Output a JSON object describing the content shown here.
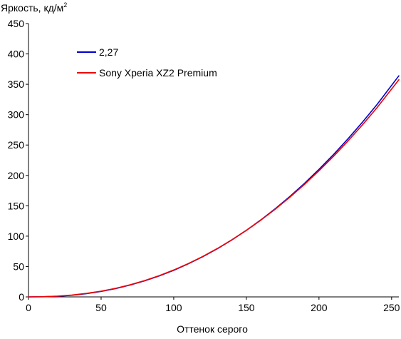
{
  "chart_data": {
    "type": "line",
    "ylabel": "Яркость, кд/м",
    "ylabel_superscript": "2",
    "xlabel": "Оттенок серого",
    "xlim": [
      0,
      255
    ],
    "ylim": [
      0,
      450
    ],
    "xticks": [
      0,
      50,
      100,
      150,
      200,
      250
    ],
    "yticks": [
      0,
      50,
      100,
      150,
      200,
      250,
      300,
      350,
      400,
      450
    ],
    "grid": false,
    "legend_position": "top-left",
    "series": [
      {
        "name": "2,27",
        "color": "#0000cc",
        "x": [
          0,
          10,
          20,
          30,
          40,
          50,
          60,
          70,
          80,
          90,
          100,
          110,
          120,
          130,
          140,
          150,
          160,
          170,
          180,
          190,
          200,
          210,
          220,
          230,
          240,
          255
        ],
        "y": [
          0,
          0.2,
          1.0,
          2.7,
          5.4,
          9.0,
          13.7,
          19.5,
          26.4,
          34.5,
          43.8,
          54.4,
          66.2,
          79.3,
          93.8,
          109.6,
          126.8,
          145.4,
          165.4,
          186.9,
          209.9,
          234.3,
          260.3,
          287.8,
          316.8,
          364.0
        ]
      },
      {
        "name": "Sony Xperia XZ2 Premium",
        "color": "#ee0000",
        "x": [
          0,
          10,
          20,
          30,
          40,
          50,
          60,
          70,
          80,
          90,
          100,
          110,
          120,
          130,
          140,
          150,
          160,
          170,
          180,
          190,
          200,
          210,
          220,
          230,
          240,
          255
        ],
        "y": [
          0,
          0.3,
          1.2,
          3.0,
          5.8,
          9.4,
          14.1,
          19.9,
          26.9,
          35.0,
          44.3,
          54.8,
          66.6,
          79.6,
          93.9,
          109.5,
          126.4,
          144.6,
          164.2,
          185.2,
          207.6,
          231.4,
          256.7,
          283.4,
          311.6,
          357.5
        ]
      }
    ]
  }
}
